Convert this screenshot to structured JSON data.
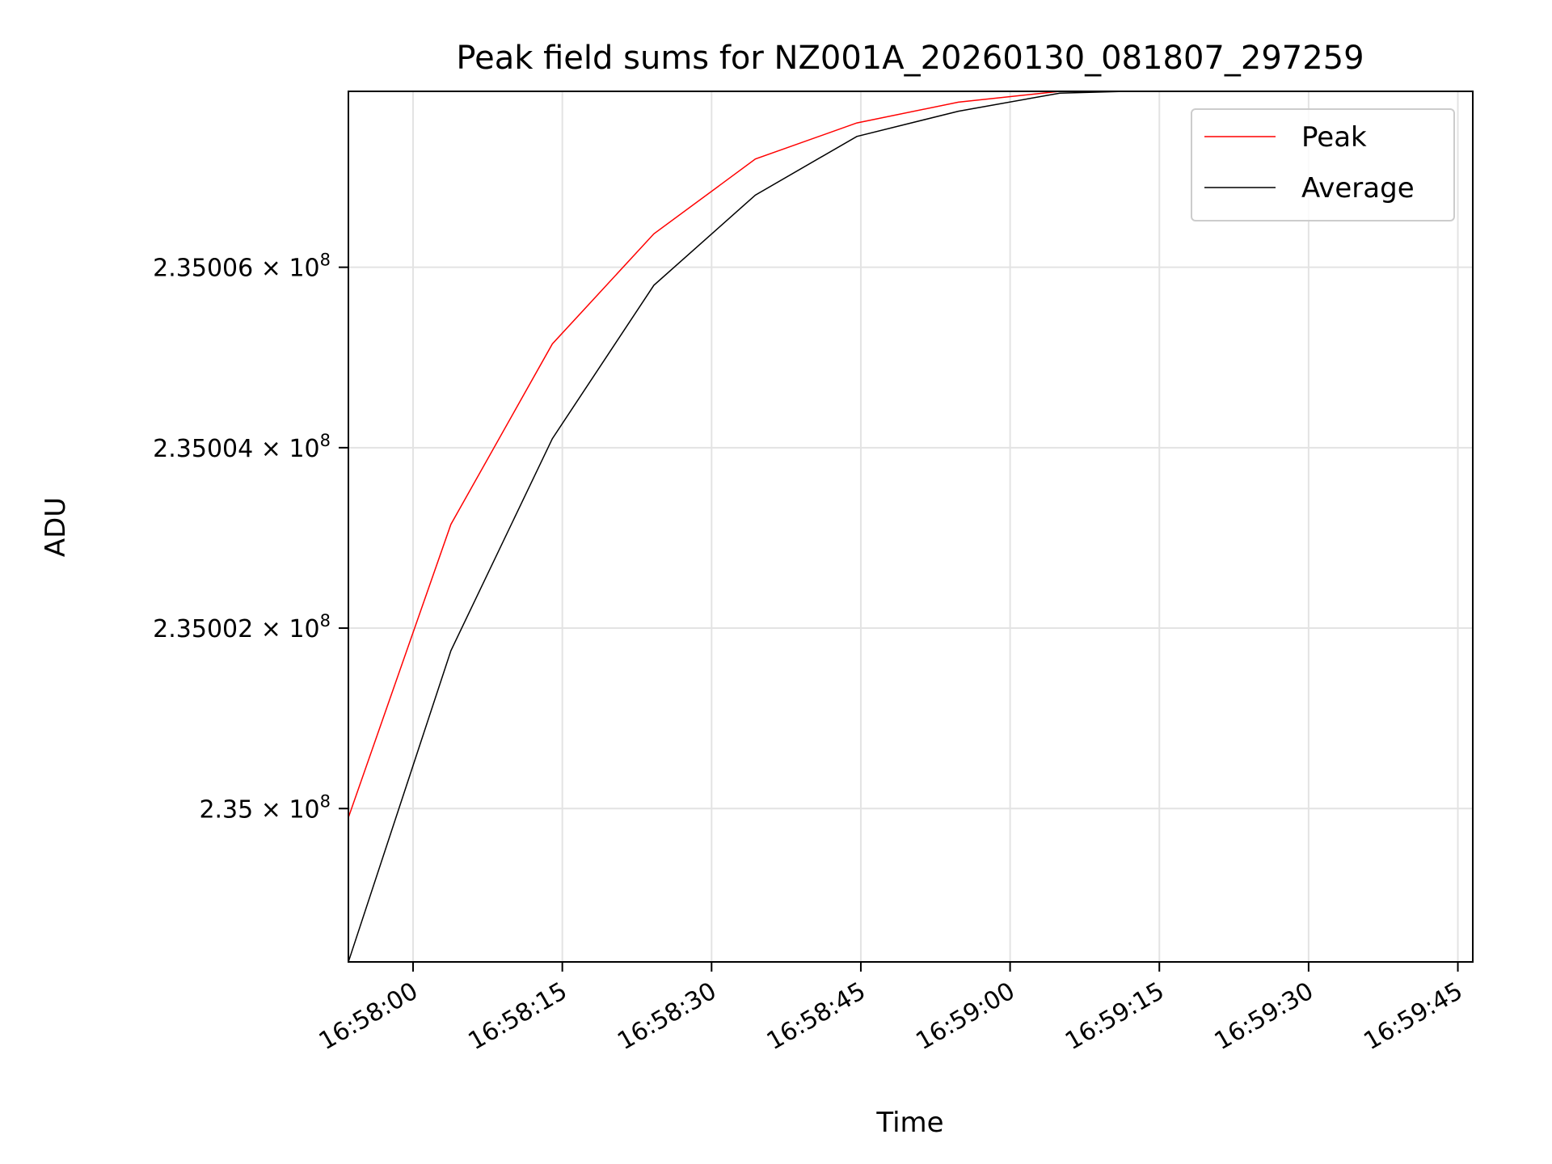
{
  "chart_data": {
    "type": "line",
    "title": "Peak field sums for NZ001A_20260130_081807_297259",
    "xlabel": "Time",
    "ylabel": "ADU",
    "x_ticks": [
      "16:58:00",
      "16:58:15",
      "16:58:30",
      "16:58:45",
      "16:59:00",
      "16:59:15",
      "16:59:30",
      "16:59:45"
    ],
    "y_ticks": [
      {
        "value": 235000000,
        "mantissa": "2.35",
        "exponent": "8"
      },
      {
        "value": 235002000,
        "mantissa": "2.35002",
        "exponent": "8"
      },
      {
        "value": 235004000,
        "mantissa": "2.35004",
        "exponent": "8"
      },
      {
        "value": 235006000,
        "mantissa": "2.35006",
        "exponent": "8"
      }
    ],
    "xlim": [
      "16:57:53.5",
      "16:59:46.5"
    ],
    "ylim": [
      234998300,
      235007950
    ],
    "y_scale": "log",
    "grid": true,
    "legend_position": "top-right",
    "x": [
      "16:57:53.5",
      "16:58:03.8",
      "16:58:14",
      "16:58:24.2",
      "16:58:34.4",
      "16:58:44.6",
      "16:58:54.8",
      "16:59:05",
      "16:59:15.2"
    ],
    "series": [
      {
        "name": "Peak",
        "color": "#ff0000",
        "values": [
          234999900,
          235003150,
          235005150,
          235006370,
          235007200,
          235007600,
          235007830,
          235007950,
          235007960
        ]
      },
      {
        "name": "Average",
        "color": "#000000",
        "values": [
          234998300,
          235001750,
          235004100,
          235005800,
          235006800,
          235007450,
          235007730,
          235007930,
          235007960
        ]
      }
    ]
  }
}
